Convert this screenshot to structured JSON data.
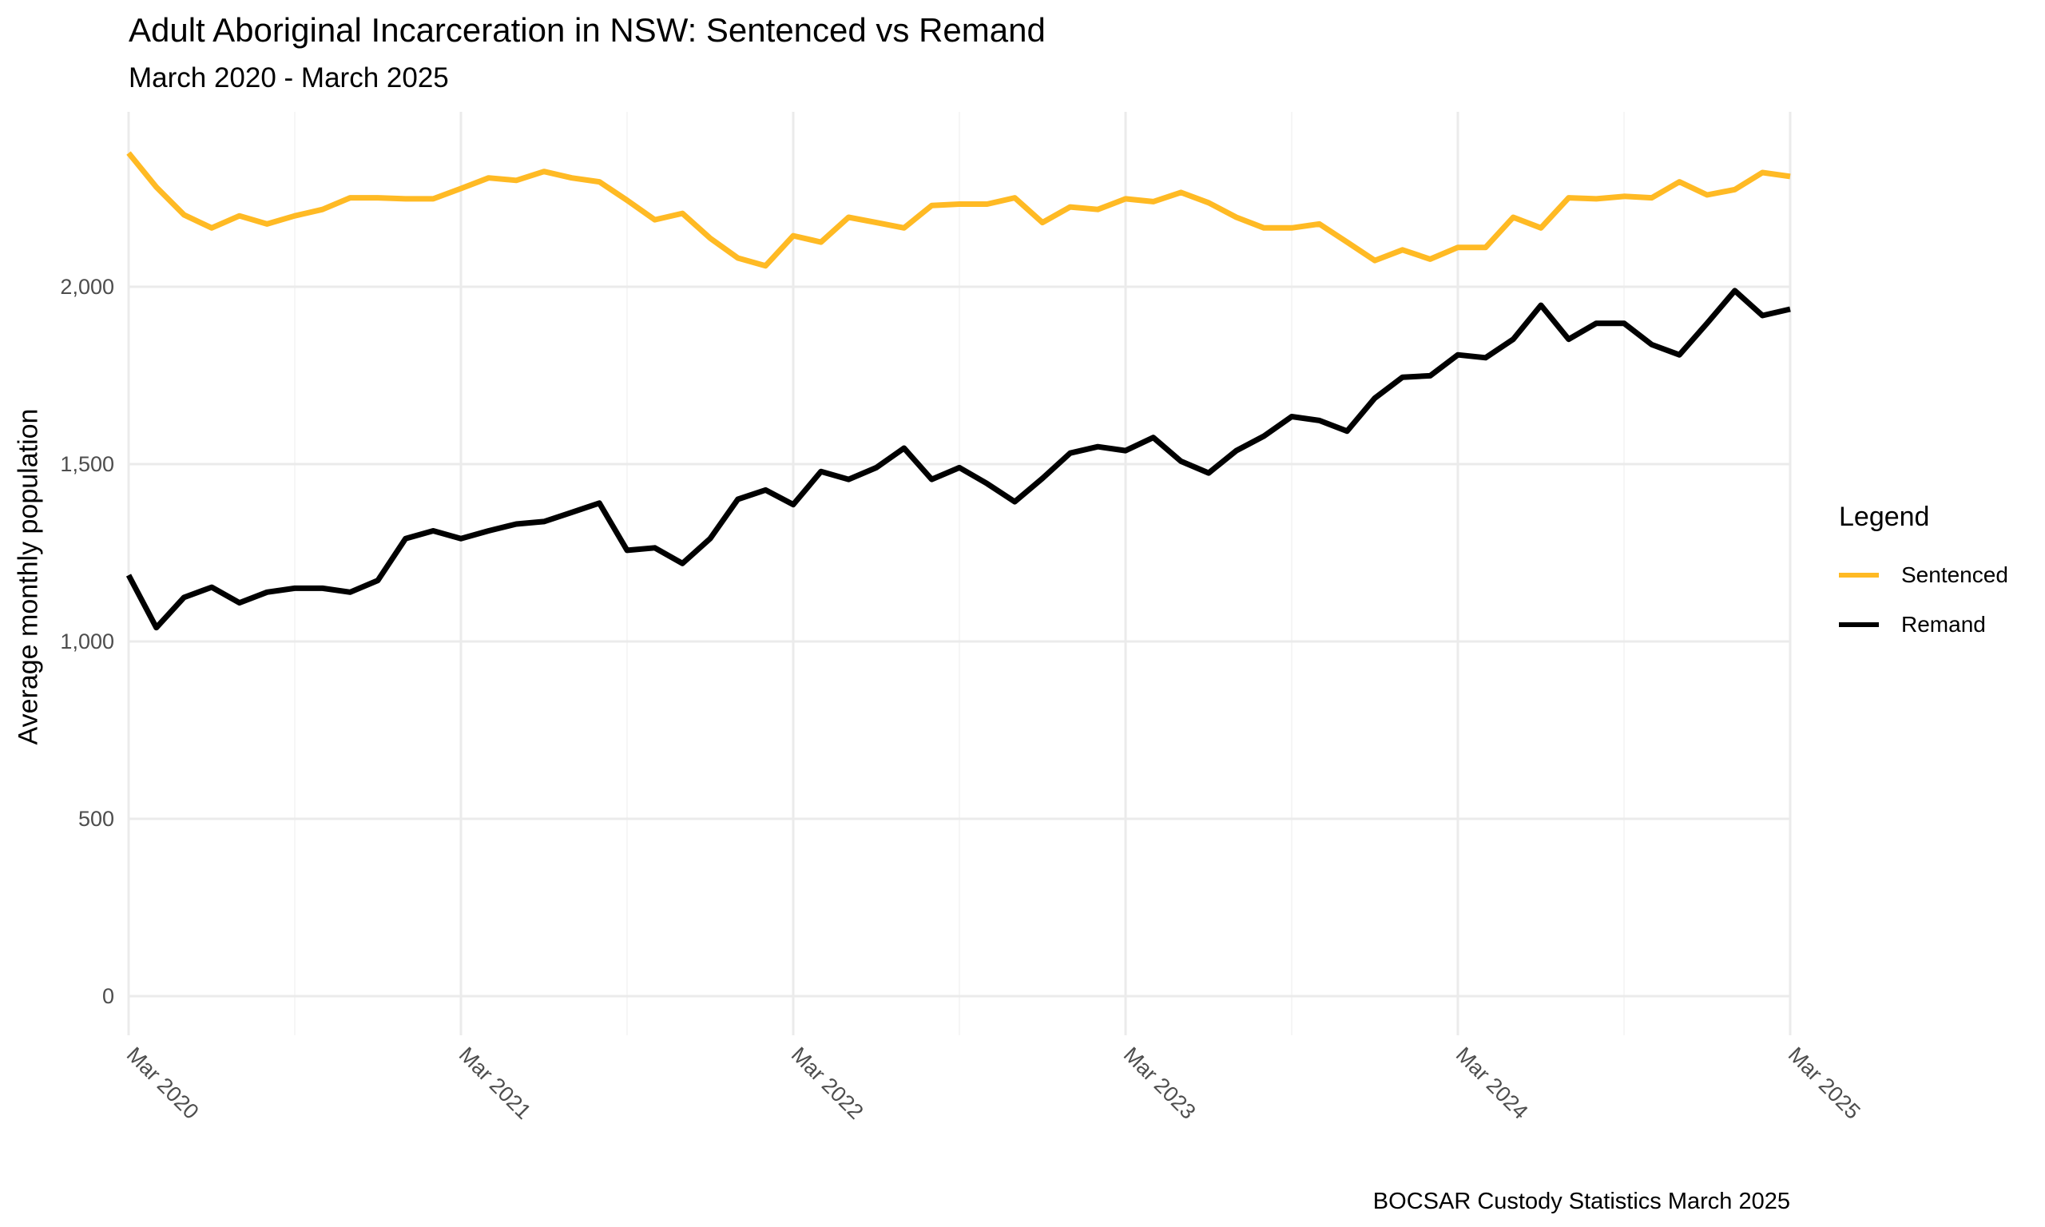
{
  "chart_data": {
    "type": "line",
    "title": "Adult Aboriginal Incarceration in NSW: Sentenced vs Remand",
    "subtitle": "March 2020 - March 2025",
    "caption": "BOCSAR Custody Statistics March 2025",
    "xlabel": "",
    "ylabel": "Average monthly population",
    "x_start": "Mar 2020",
    "x_end": "Mar 2025",
    "x_frequency": "monthly",
    "x_ticks": [
      "Mar 2020",
      "Mar 2021",
      "Mar 2022",
      "Mar 2023",
      "Mar 2024",
      "Mar 2025"
    ],
    "y_ticks": [
      0,
      500,
      1000,
      1500,
      2000
    ],
    "y_tick_labels": [
      "0",
      "500",
      "1,000",
      "1,500",
      "2,000"
    ],
    "ylim": [
      -110,
      2480
    ],
    "grid": true,
    "legend": {
      "title": "Legend",
      "placement": "right"
    },
    "series": [
      {
        "name": "Sentenced",
        "color": "#FFBA24",
        "values": [
          2377,
          2281,
          2203,
          2166,
          2200,
          2177,
          2200,
          2218,
          2251,
          2251,
          2248,
          2248,
          2277,
          2307,
          2300,
          2325,
          2307,
          2296,
          2244,
          2189,
          2207,
          2137,
          2081,
          2059,
          2144,
          2126,
          2196,
          2181,
          2166,
          2229,
          2233,
          2233,
          2251,
          2181,
          2225,
          2218,
          2248,
          2240,
          2266,
          2237,
          2196,
          2166,
          2166,
          2177,
          2126,
          2074,
          2104,
          2078,
          2111,
          2111,
          2196,
          2166,
          2251,
          2248,
          2255,
          2251,
          2296,
          2259,
          2274,
          2322,
          2311
        ]
      },
      {
        "name": "Remand",
        "color": "#000000",
        "values": [
          1187,
          1039,
          1124,
          1153,
          1109,
          1139,
          1150,
          1150,
          1139,
          1172,
          1290,
          1312,
          1290,
          1312,
          1331,
          1338,
          1364,
          1390,
          1257,
          1264,
          1220,
          1290,
          1401,
          1427,
          1386,
          1479,
          1457,
          1490,
          1545,
          1457,
          1490,
          1445,
          1394,
          1460,
          1531,
          1549,
          1538,
          1575,
          1508,
          1475,
          1538,
          1579,
          1634,
          1623,
          1593,
          1686,
          1745,
          1749,
          1808,
          1800,
          1852,
          1948,
          1852,
          1897,
          1897,
          1837,
          1808,
          1897,
          1989,
          1919,
          1937
        ]
      }
    ]
  }
}
